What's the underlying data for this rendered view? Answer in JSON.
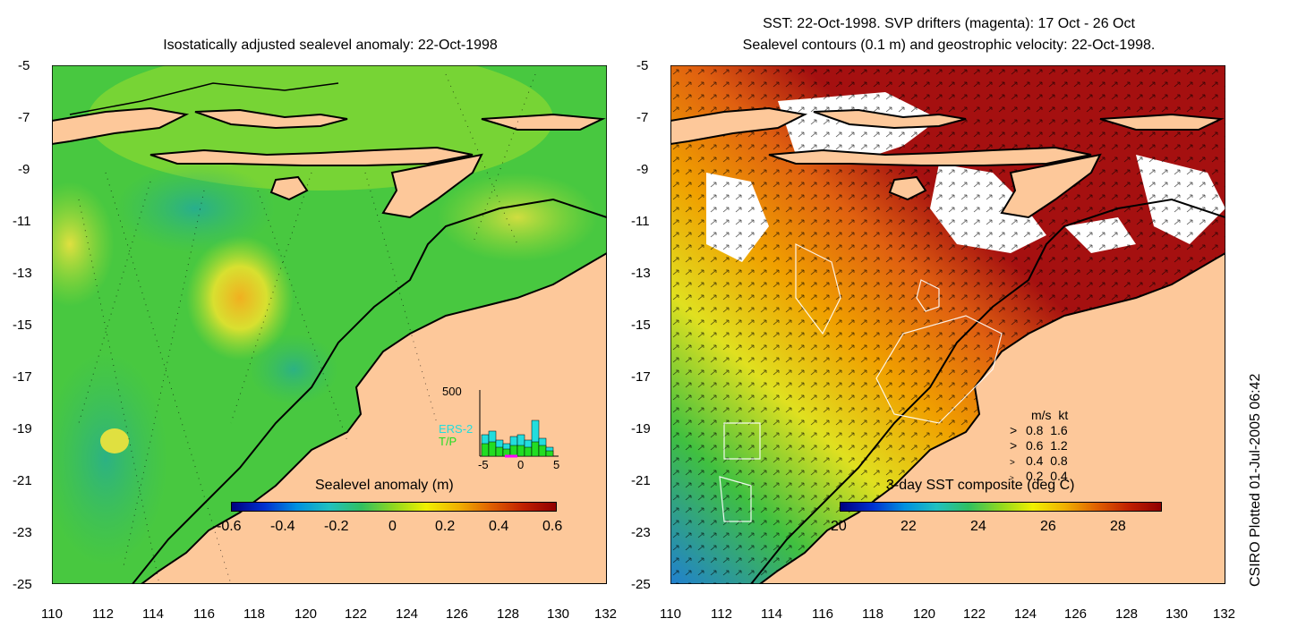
{
  "left_panel": {
    "title": "Isostatically adjusted sealevel anomaly: 22-Oct-1998",
    "y_ticks": [
      "-5",
      "-7",
      "-9",
      "-11",
      "-13",
      "-15",
      "-17",
      "-19",
      "-21",
      "-23",
      "-25"
    ],
    "x_ticks": [
      "110",
      "112",
      "114",
      "116",
      "118",
      "120",
      "122",
      "124",
      "126",
      "128",
      "130",
      "132"
    ],
    "colorbar": {
      "label": "Sealevel anomaly (m)",
      "ticks": [
        "-0.6",
        "-0.4",
        "-0.2",
        "0",
        "0.2",
        "0.4",
        "0.6"
      ],
      "range": [
        -0.6,
        0.6
      ]
    },
    "inset": {
      "ymax_label": "500",
      "x_ticks": [
        "-5",
        "0",
        "5"
      ],
      "legend": [
        {
          "name": "ERS-2",
          "color": "#22dddd"
        },
        {
          "name": "T/P",
          "color": "#22dd22"
        }
      ]
    }
  },
  "right_panel": {
    "title_line1": "SST: 22-Oct-1998. SVP drifters (magenta): 17 Oct - 26 Oct",
    "title_line2": "Sealevel contours (0.1 m) and geostrophic velocity: 22-Oct-1998.",
    "y_ticks": [
      "-5",
      "-7",
      "-9",
      "-11",
      "-13",
      "-15",
      "-17",
      "-19",
      "-21",
      "-23",
      "-25"
    ],
    "x_ticks": [
      "110",
      "112",
      "114",
      "116",
      "118",
      "120",
      "122",
      "124",
      "126",
      "128",
      "130",
      "132"
    ],
    "colorbar": {
      "label": "3-day SST composite (deg C)",
      "ticks": [
        "20",
        "22",
        "24",
        "26",
        "28"
      ],
      "range": [
        20,
        29.5
      ]
    },
    "velocity_key": {
      "header": "m/s  kt",
      "rows": [
        "0.8  1.6",
        "0.6  1.2",
        "0.4  0.8",
        "0.2  0.4"
      ]
    }
  },
  "credit": "CSIRO Plotted 01-Jul-2005 06:42",
  "colors": {
    "land": "#fdc89a",
    "ocean_green": "#3cc83c",
    "sst_hot": "#a51010",
    "sst_cloud": "#ffffff"
  }
}
